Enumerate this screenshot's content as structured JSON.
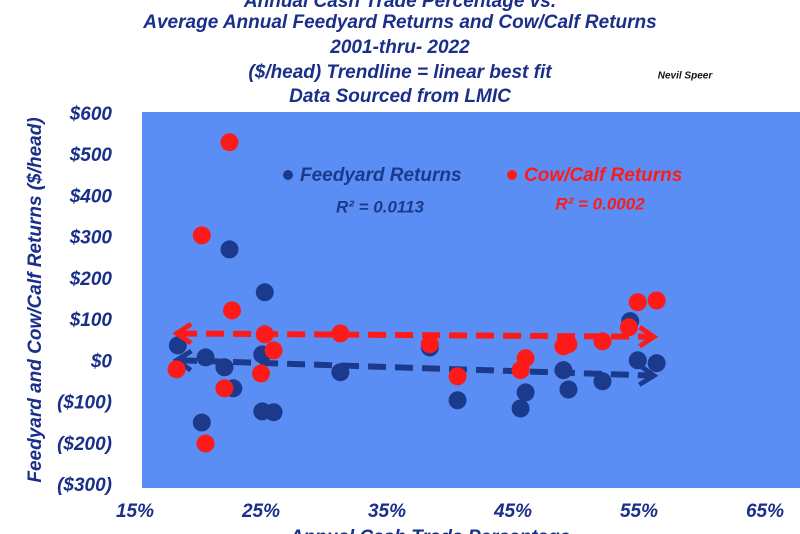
{
  "chart_data": {
    "type": "scatter",
    "title": [
      "Annual Cash Trade Percentage vs.",
      "Average Annual Feedyard Returns and Cow/Calf Returns",
      "2001-thru- 2022",
      "($/head) Trendline = linear best fit",
      "Data Sourced from LMIC"
    ],
    "author": "Nevil Speer",
    "x_label": "Annual Cash Trade Percentage",
    "y_label": "Feedyard and Cow/Calf Returns ($/head)",
    "xlim": [
      15,
      65
    ],
    "xticks": [
      {
        "value": 15,
        "label": "15%"
      },
      {
        "value": 25,
        "label": "25%"
      },
      {
        "value": 35,
        "label": "35%"
      },
      {
        "value": 45,
        "label": "45%"
      },
      {
        "value": 55,
        "label": "55%"
      },
      {
        "value": 65,
        "label": "65%"
      }
    ],
    "ylim": [
      -300,
      600
    ],
    "yticks": [
      {
        "value": 600,
        "label": "$600"
      },
      {
        "value": 500,
        "label": "$500"
      },
      {
        "value": 400,
        "label": "$400"
      },
      {
        "value": 300,
        "label": "$300"
      },
      {
        "value": 200,
        "label": "$200"
      },
      {
        "value": 100,
        "label": "$100"
      },
      {
        "value": 0,
        "label": "$0"
      },
      {
        "value": -100,
        "label": "($100)"
      },
      {
        "value": -200,
        "label": "($200)"
      },
      {
        "value": -300,
        "label": "($300)"
      }
    ],
    "series": [
      {
        "name": "Feedyard Returns",
        "color": "#1c3a8c",
        "r_squared": "R² = 0.0113",
        "x": [
          18.4,
          20.6,
          20.3,
          22.5,
          22.1,
          22.8,
          25.3,
          25.1,
          25.1,
          26.0,
          31.3,
          38.4,
          40.6,
          45.6,
          46.0,
          49.0,
          49.4,
          52.1,
          54.3,
          54.9,
          56.4
        ],
        "values": [
          41,
          12,
          -146,
          274,
          -12,
          -63,
          170,
          19,
          -119,
          -121,
          -24,
          36,
          -92,
          -112,
          -73,
          -19,
          -66,
          -46,
          100,
          5,
          -2
        ],
        "trendline": {
          "x": [
            18.5,
            56
          ],
          "values": [
            5,
            -32
          ]
        }
      },
      {
        "name": "Cow/Calf Returns",
        "color": "#ff1a1a",
        "r_squared": "R² = 0.0002",
        "x": [
          18.3,
          20.3,
          20.6,
          22.5,
          22.1,
          22.7,
          25.3,
          25.0,
          26.0,
          31.3,
          38.4,
          40.6,
          45.6,
          46.0,
          49.0,
          49.4,
          52.1,
          54.2,
          54.9,
          56.4
        ],
        "values": [
          -17,
          308,
          -197,
          534,
          -63,
          126,
          68,
          -27,
          29,
          70,
          44,
          -34,
          -19,
          10,
          39,
          44,
          51,
          85,
          146,
          150
        ],
        "trendline": {
          "x": [
            18.5,
            56
          ],
          "values": [
            70,
            62
          ]
        }
      }
    ]
  }
}
